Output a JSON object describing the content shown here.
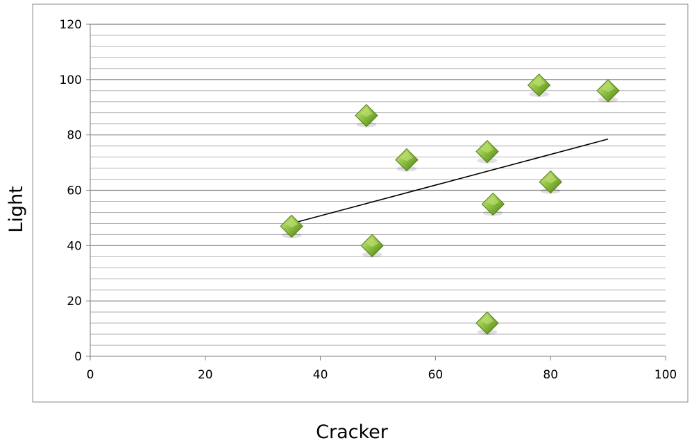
{
  "chart_data": {
    "type": "scatter",
    "title": "",
    "xlabel": "Cracker",
    "ylabel": "Light",
    "xlim": [
      0,
      100
    ],
    "ylim": [
      0,
      120
    ],
    "x_ticks": [
      0,
      20,
      40,
      60,
      80,
      100
    ],
    "y_ticks": [
      0,
      20,
      40,
      60,
      80,
      100,
      120
    ],
    "x_tick_labels": [
      "0",
      "20",
      "40",
      "60",
      "80",
      "100"
    ],
    "y_tick_labels": [
      "0",
      "20",
      "40",
      "60",
      "80",
      "100",
      "120"
    ],
    "y_minor_step": 4,
    "grid": true,
    "legend": "none",
    "series": [
      {
        "marker": "diamond",
        "color": "#8cbf3f",
        "points": [
          {
            "x": 35,
            "y": 47
          },
          {
            "x": 48,
            "y": 87
          },
          {
            "x": 49,
            "y": 40
          },
          {
            "x": 55,
            "y": 71
          },
          {
            "x": 69,
            "y": 74
          },
          {
            "x": 69,
            "y": 12
          },
          {
            "x": 70,
            "y": 55
          },
          {
            "x": 78,
            "y": 98
          },
          {
            "x": 80,
            "y": 63
          },
          {
            "x": 90,
            "y": 96
          }
        ]
      }
    ],
    "trendline": {
      "type": "linear",
      "color": "#000000",
      "from": {
        "x": 35,
        "y": 48
      },
      "to": {
        "x": 90,
        "y": 78.5
      }
    },
    "colors": {
      "marker_light": "#c6e37a",
      "marker_mid": "#8cbf3f",
      "marker_dark": "#4f7a17",
      "gridline": "#8c8c8c",
      "frame": "#888888"
    }
  }
}
